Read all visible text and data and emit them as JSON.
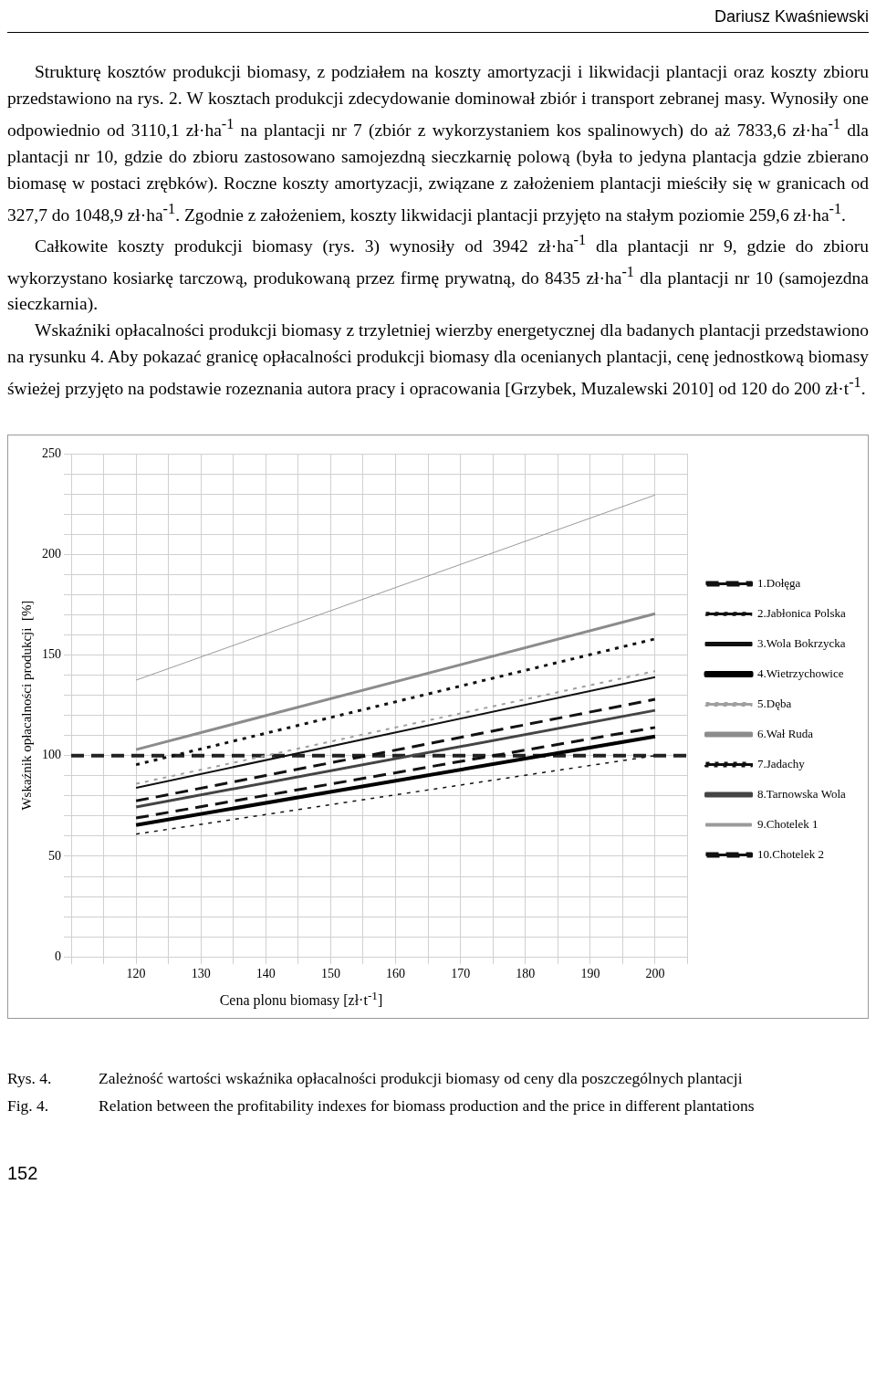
{
  "chart_data": {
    "type": "line",
    "ylabel": "Wskaźnik opłacalności produkcji  [%]",
    "xlabel": "Cena plonu biomasy [zł·t$^{-1}$]",
    "x": [
      120,
      200
    ],
    "xlim": [
      110,
      205
    ],
    "xticks": [
      {
        "value": 110,
        "label": null
      },
      {
        "value": 115,
        "label": null
      },
      120,
      {
        "value": 125,
        "label": null
      },
      130,
      {
        "value": 135,
        "label": null
      },
      140,
      {
        "value": 145,
        "label": null
      },
      150,
      {
        "value": 155,
        "label": null
      },
      160,
      {
        "value": 165,
        "label": null
      },
      170,
      {
        "value": 175,
        "label": null
      },
      180,
      {
        "value": 185,
        "label": null
      },
      190,
      {
        "value": 195,
        "label": null
      },
      200,
      {
        "value": 205,
        "label": null
      }
    ],
    "ylim": [
      0,
      250
    ],
    "yticks": [
      0,
      {
        "value": 10,
        "label": null
      },
      {
        "value": 20,
        "label": null
      },
      {
        "value": 30,
        "label": null
      },
      {
        "value": 40,
        "label": null
      },
      50,
      {
        "value": 60,
        "label": null
      },
      {
        "value": 70,
        "label": null
      },
      {
        "value": 80,
        "label": null
      },
      {
        "value": 90,
        "label": null
      },
      100,
      {
        "value": 110,
        "label": null
      },
      {
        "value": 120,
        "label": null
      },
      {
        "value": 130,
        "label": null
      },
      {
        "value": 140,
        "label": null
      },
      150,
      {
        "value": 160,
        "label": null
      },
      {
        "value": 170,
        "label": null
      },
      {
        "value": 180,
        "label": null
      },
      {
        "value": 190,
        "label": null
      },
      200,
      {
        "value": 210,
        "label": null
      },
      {
        "value": 220,
        "label": null
      },
      {
        "value": 230,
        "label": null
      },
      {
        "value": 240,
        "label": null
      },
      250
    ],
    "grid": true,
    "legend": "right",
    "marker": "none",
    "series": [
      {
        "name": "1.Dołęga",
        "color": "#111111",
        "line_style": "dashed",
        "values": [
          69,
          114
        ]
      },
      {
        "name": "2.Jabłonica Polska",
        "color": "#111111",
        "line_style": "dotted",
        "values": [
          61,
          100
        ]
      },
      {
        "name": "3.Wola Bokrzycka",
        "color": "#111111",
        "line_style": "solid",
        "values": [
          84,
          139
        ]
      },
      {
        "name": "4.Wietrzychowice",
        "color": "#000000",
        "line_style": "solid",
        "values": [
          65.5,
          109.5
        ]
      },
      {
        "name": "5.Dęba",
        "color": "#a0a0a0",
        "line_style": "dotted",
        "values": [
          86,
          142
        ]
      },
      {
        "name": "6.Wał Ruda",
        "color": "#8c8c8c",
        "line_style": "solid",
        "values": [
          103,
          170.5
        ]
      },
      {
        "name": "7.Jadachy",
        "color": "#111111",
        "line_style": "dotted",
        "values": [
          95.5,
          158
        ]
      },
      {
        "name": "8.Tarnowska Wola",
        "color": "#444444",
        "line_style": "solid",
        "values": [
          74.5,
          122.5
        ]
      },
      {
        "name": "9.Chotelek 1",
        "color": "#9a9a9a",
        "line_style": "solid",
        "values": [
          137.5,
          229.5
        ]
      },
      {
        "name": "10.Chotelek 2",
        "color": "#111111",
        "line_style": "dashed",
        "values": [
          77.5,
          128
        ]
      }
    ],
    "ref_lines": [
      {
        "axis": "y",
        "value": 100,
        "color": "#222222",
        "line_style": "dashed"
      }
    ],
    "annotations": [
      "Dariusz Kwaśniewski",
      "Strukturę kosztów produkcji biomasy, z podziałem na koszty amortyzacji i likwidacji plantacji oraz koszty zbioru przedstawiono na rys. 2. W kosztach produkcji zdecydowanie dominował zbiór i transport zebranej masy. Wynosiły one odpowiednio od 3110,1 zł·ha$^{-1}$ na plantacji nr 7 (zbiór z wykorzystaniem kos spalinowych) do aż 7833,6 zł·ha$^{-1}$ dla plantacji nr 10, gdzie do zbioru zastosowano samojezdną sieczkarnię polową (była to jedyna plantacja gdzie zbierano biomasę w postaci zrębków). Roczne koszty amortyzacji, związane z założeniem plantacji mieściły się w granicach od 327,7 do 1048,9 zł·ha$^{-1}$. Zgodnie z założeniem, koszty likwidacji plantacji przyjęto na stałym poziomie 259,6 zł·ha$^{-1}$.",
      "Całkowite koszty produkcji biomasy (rys. 3) wynosiły od 3942 zł·ha$^{-1}$ dla plantacji nr 9, gdzie do zbioru wykorzystano kosiarkę tarczową, produkowaną przez firmę prywatną, do 8435 zł·ha$^{-1}$ dla plantacji nr 10 (samojezdna sieczkarnia).",
      "Wskaźniki opłacalności produkcji biomasy z trzyletniej wierzby energetycznej dla badanych plantacji przedstawiono na rysunku 4. Aby pokazać granicę opłacalności produkcji biomasy dla ocenianych plantacji, cenę jednostkową biomasy świeżej przyjęto na podstawie rozeznania autora pracy i opracowania [Grzybek, Muzalewski 2010] od 120 do 200 zł·t$^{-1}$.",
      "Rys. 4.",
      "Zależność wartości wskaźnika opłacalności produkcji biomasy od ceny dla poszczególnych plantacji",
      "Fig. 4.",
      "Relation between the profitability indexes for biomass production and the price in different plantations",
      "152"
    ]
  }
}
